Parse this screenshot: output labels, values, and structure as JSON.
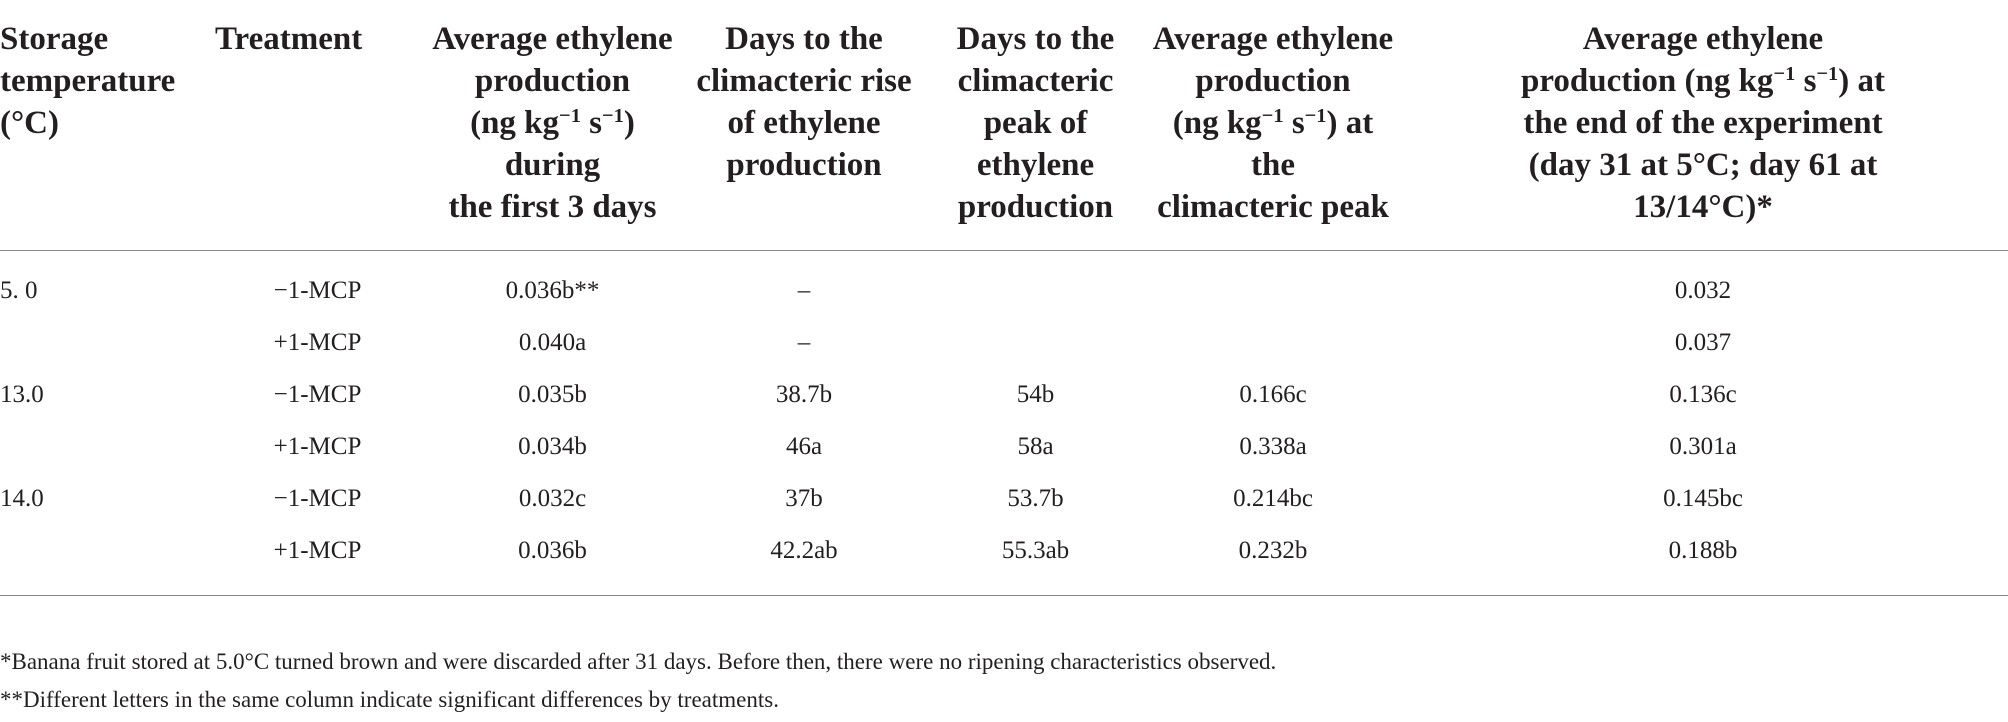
{
  "headers": [
    [
      "Storage",
      "temperature",
      "(°C)"
    ],
    [
      "Treatment"
    ],
    [
      "Average ethylene",
      "production",
      "(ng kg|−1| s|−1|) during",
      "the first 3 days"
    ],
    [
      "Days to the",
      "climacteric rise",
      "of ethylene",
      "production"
    ],
    [
      "Days to the",
      "climacteric",
      "peak of",
      "ethylene",
      "production"
    ],
    [
      "Average ethylene",
      "production",
      "(ng kg|−1| s|−1|) at the",
      "climacteric peak"
    ],
    [
      "Average ethylene",
      "production (ng kg|−1| s|−1|) at",
      "the end of the experiment",
      "(day 31 at 5°C; day 61 at",
      "13/14°C)*"
    ]
  ],
  "rows": [
    [
      "5. 0",
      "−1-MCP",
      "0.036b**",
      "–",
      "",
      "",
      "0.032"
    ],
    [
      "",
      "+1-MCP",
      "0.040a",
      "–",
      "",
      "",
      "0.037"
    ],
    [
      "13.0",
      "−1-MCP",
      "0.035b",
      "38.7b",
      "54b",
      "0.166c",
      "0.136c"
    ],
    [
      "",
      "+1-MCP",
      "0.034b",
      "46a",
      "58a",
      "0.338a",
      "0.301a"
    ],
    [
      "14.0",
      "−1-MCP",
      "0.032c",
      "37b",
      "53.7b",
      "0.214bc",
      "0.145bc"
    ],
    [
      "",
      "+1-MCP",
      "0.036b",
      "42.2ab",
      "55.3ab",
      "0.232b",
      "0.188b"
    ]
  ],
  "footnotes": [
    "*Banana fruit stored at 5.0°C turned brown and were discarded after 31 days. Before then, there were no ripening characteristics observed.",
    "**Different letters in the same column indicate significant differences by treatments."
  ]
}
